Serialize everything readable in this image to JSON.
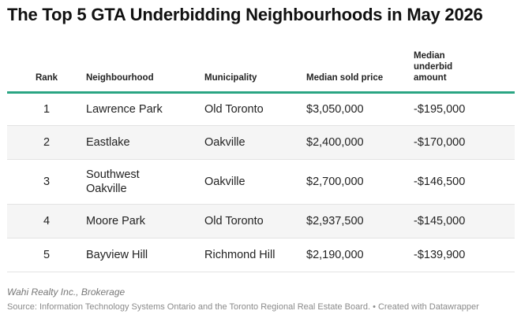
{
  "title": "The Top 5 GTA Underbidding Neighbourhoods in May 2026",
  "chart_data": {
    "type": "table",
    "columns": [
      "Rank",
      "Neighbourhood",
      "Municipality",
      "Median sold price",
      "Median underbid amount"
    ],
    "rows": [
      {
        "rank": "1",
        "neighbourhood": "Lawrence Park",
        "municipality": "Old Toronto",
        "median_sold_price": "$3,050,000",
        "median_underbid_amount": "-$195,000"
      },
      {
        "rank": "2",
        "neighbourhood": "Eastlake",
        "municipality": "Oakville",
        "median_sold_price": "$2,400,000",
        "median_underbid_amount": "-$170,000"
      },
      {
        "rank": "3",
        "neighbourhood": "Southwest Oakville",
        "municipality": "Oakville",
        "median_sold_price": "$2,700,000",
        "median_underbid_amount": "-$146,500"
      },
      {
        "rank": "4",
        "neighbourhood": "Moore Park",
        "municipality": "Old Toronto",
        "median_sold_price": "$2,937,500",
        "median_underbid_amount": "-$145,000"
      },
      {
        "rank": "5",
        "neighbourhood": "Bayview Hill",
        "municipality": "Richmond Hill",
        "median_sold_price": "$2,190,000",
        "median_underbid_amount": "-$139,900"
      }
    ]
  },
  "note": "Wahi Realty Inc., Brokerage",
  "source": "Source: Information Technology Systems Ontario and the Toronto Regional Real Estate Board. • Created with Datawrapper",
  "colors": {
    "header_rule": "#2aa583",
    "stripe": "#f5f5f5"
  }
}
